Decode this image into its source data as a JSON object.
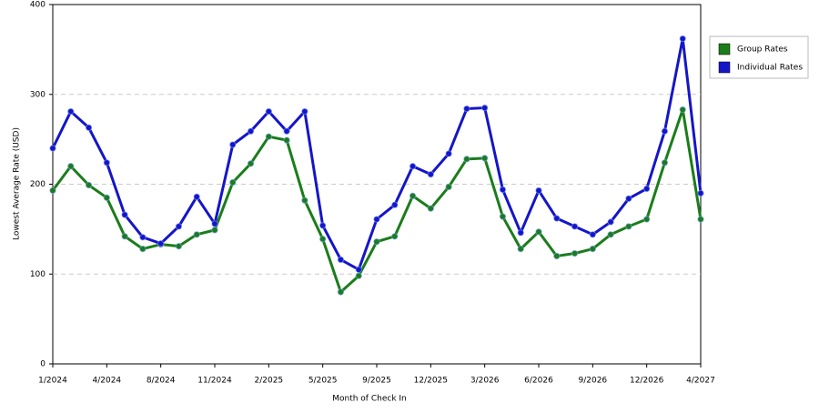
{
  "chart_data": {
    "type": "line",
    "x_label": "Month of Check In",
    "y_label": "Lowest Average Rate (USD)",
    "categories": [
      "1/2024",
      null,
      null,
      "4/2024",
      null,
      null,
      "8/2024",
      null,
      null,
      "11/2024",
      null,
      null,
      "2/2025",
      null,
      null,
      "5/2025",
      null,
      null,
      "9/2025",
      null,
      null,
      "12/2025",
      null,
      null,
      "3/2026",
      null,
      null,
      "6/2026",
      null,
      null,
      "9/2026",
      null,
      null,
      "12/2026",
      null,
      null,
      "4/2027"
    ],
    "series": [
      {
        "name": "Group Rates",
        "color": "#1a7d1a",
        "values": [
          193,
          220,
          199,
          185,
          142,
          128,
          133,
          131,
          144,
          149,
          202,
          223,
          253,
          249,
          182,
          139,
          80,
          98,
          136,
          142,
          187,
          173,
          197,
          228,
          229,
          164,
          128,
          147,
          120,
          123,
          128,
          144,
          153,
          161,
          224,
          283,
          161
        ]
      },
      {
        "name": "Individual Rates",
        "color": "#1515c8",
        "values": [
          240,
          281,
          263,
          224,
          166,
          141,
          134,
          153,
          186,
          156,
          244,
          259,
          281,
          259,
          281,
          154,
          116,
          105,
          161,
          177,
          220,
          211,
          234,
          284,
          285,
          194,
          146,
          193,
          162,
          153,
          144,
          158,
          184,
          195,
          259,
          362,
          190
        ]
      }
    ],
    "ylim": [
      0,
      400
    ],
    "yticks": [
      0,
      100,
      200,
      300,
      400
    ],
    "grid": true,
    "legend": "right"
  }
}
